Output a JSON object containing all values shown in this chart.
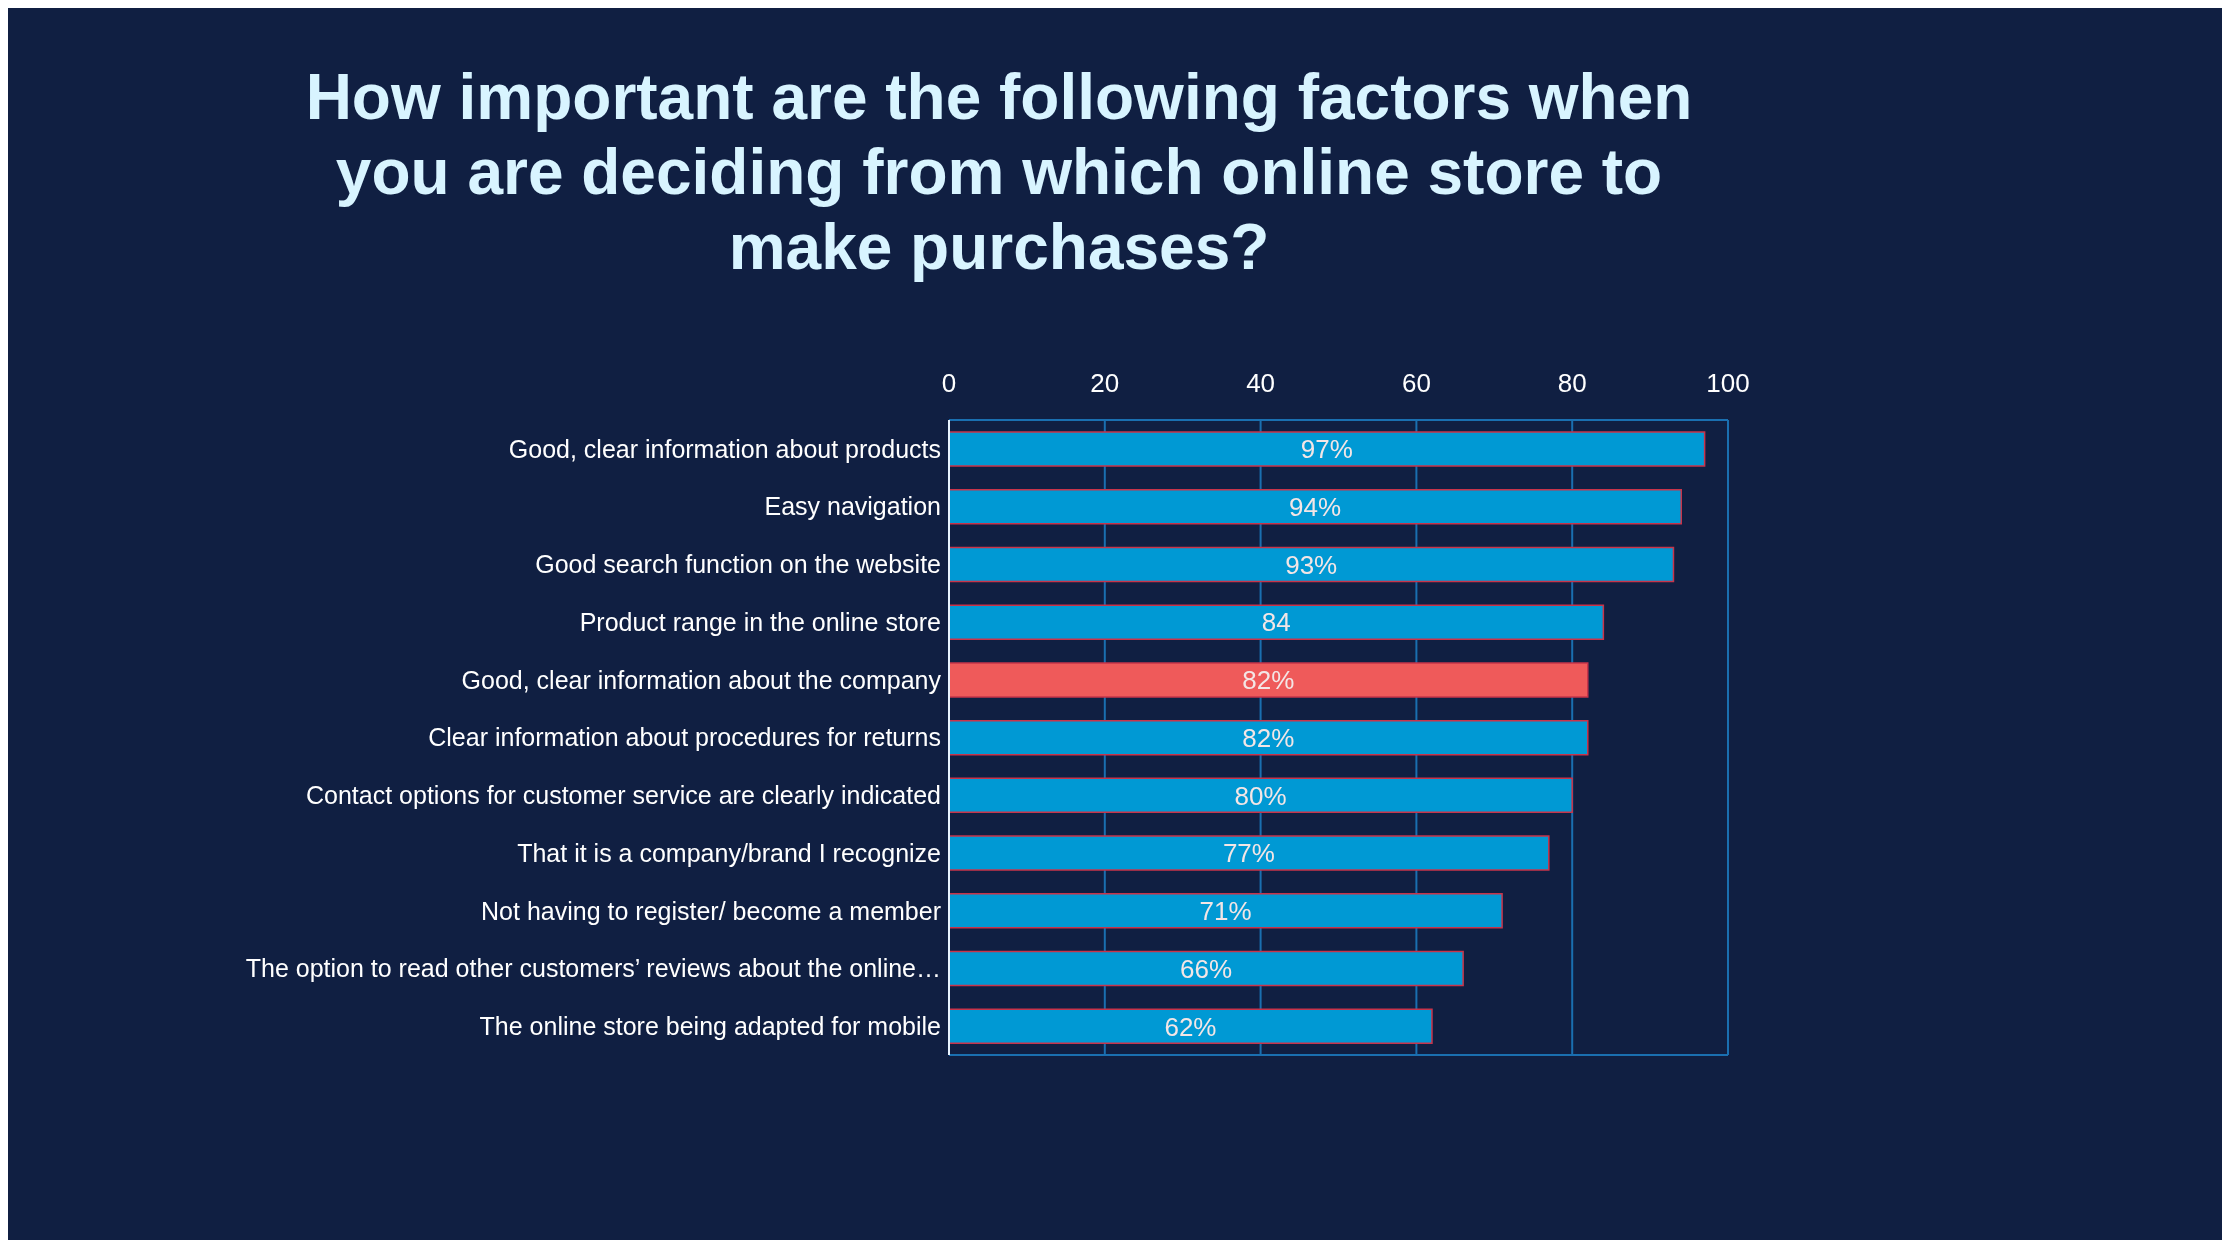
{
  "chart_data": {
    "type": "bar",
    "orientation": "horizontal",
    "title": "How important are the following factors when you are deciding from which online store to make purchases?",
    "categories": [
      "Good, clear information about products",
      "Easy navigation",
      "Good search function on the website",
      "Product range in the online store",
      "Good, clear information about the company",
      "Clear information about procedures for returns",
      "Contact options for customer service are clearly indicated",
      "That it is a company/brand I recognize",
      "Not having to register/ become a member",
      "The option to read other customers’ reviews about the online…",
      "The online store being adapted for mobile"
    ],
    "values": [
      97,
      94,
      93,
      84,
      82,
      82,
      80,
      77,
      71,
      66,
      62
    ],
    "value_labels": [
      "97%",
      "94%",
      "93%",
      "84",
      "82%",
      "82%",
      "80%",
      "77%",
      "71%",
      "66%",
      "62%"
    ],
    "colors": [
      "#0099d4",
      "#0099d4",
      "#0099d4",
      "#0099d4",
      "#ef5a5a",
      "#0099d4",
      "#0099d4",
      "#0099d4",
      "#0099d4",
      "#0099d4",
      "#0099d4"
    ],
    "xlim": [
      0,
      100
    ],
    "xticks": [
      0,
      20,
      40,
      60,
      80,
      100
    ],
    "grid": "x"
  }
}
